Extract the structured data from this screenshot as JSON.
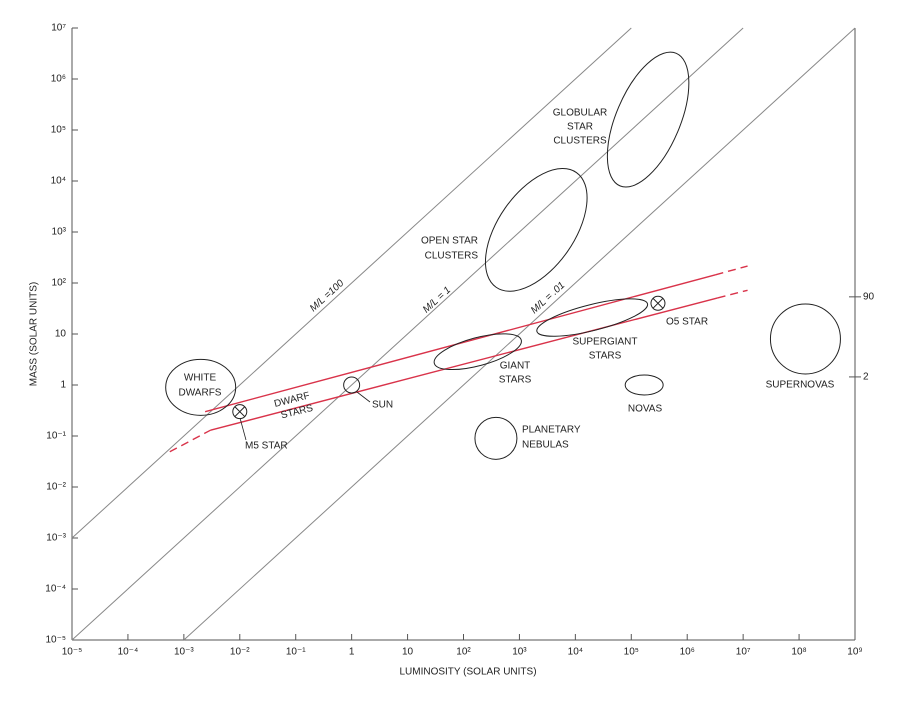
{
  "chart_data": {
    "type": "loglog-regions",
    "xlabel": "LUMINOSITY (SOLAR UNITS)",
    "ylabel": "MASS (SOLAR UNITS)",
    "xscale": "log",
    "yscale": "log",
    "xlim": [
      1e-05,
      1000000000
    ],
    "ylim": [
      1e-05,
      10000000
    ],
    "xticks": [
      {
        "value": 1e-05,
        "label": "10⁻⁵"
      },
      {
        "value": 0.0001,
        "label": "10⁻⁴"
      },
      {
        "value": 0.001,
        "label": "10⁻³"
      },
      {
        "value": 0.01,
        "label": "10⁻²"
      },
      {
        "value": 0.1,
        "label": "10⁻¹"
      },
      1,
      10,
      {
        "value": 100,
        "label": "10²"
      },
      {
        "value": 1000,
        "label": "10³"
      },
      {
        "value": 10000,
        "label": "10⁴"
      },
      {
        "value": 100000,
        "label": "10⁵"
      },
      {
        "value": 1000000,
        "label": "10⁶"
      },
      {
        "value": 10000000,
        "label": "10⁷"
      },
      {
        "value": 100000000,
        "label": "10⁸"
      },
      {
        "value": 1000000000,
        "label": "10⁹"
      }
    ],
    "yticks": [
      {
        "value": 1e-05,
        "label": "10⁻⁵"
      },
      {
        "value": 0.0001,
        "label": "10⁻⁴"
      },
      {
        "value": 0.001,
        "label": "10⁻³"
      },
      {
        "value": 0.01,
        "label": "10⁻²"
      },
      {
        "value": 0.1,
        "label": "10⁻¹"
      },
      1,
      10,
      {
        "value": 100,
        "label": "10²"
      },
      {
        "value": 1000,
        "label": "10³"
      },
      {
        "value": 10000,
        "label": "10⁴"
      },
      {
        "value": 100000,
        "label": "10⁵"
      },
      {
        "value": 1000000,
        "label": "10⁶"
      },
      {
        "value": 10000000,
        "label": "10⁷"
      }
    ],
    "y2scale": "log",
    "y2lim": [
      7.4e-06,
      32000000
    ],
    "y2ticks": [
      90,
      2
    ],
    "ratio_lines": [
      {
        "label": "M/L =100",
        "value": 100
      },
      {
        "label": "M/L = 1",
        "value": 1
      },
      {
        "label": "M/L = .01",
        "value": 0.01
      }
    ],
    "band_color": "#d9334a",
    "series": [
      {
        "line_style": "dashed",
        "x": [
          0.00056,
          0.003
        ],
        "values": [
          0.049,
          0.13
        ]
      },
      {
        "line_style": "solid",
        "x": [
          0.003,
          3500000
        ],
        "values": [
          0.13,
          51
        ]
      },
      {
        "line_style": "dashed",
        "x": [
          3500000,
          12000000
        ],
        "values": [
          51,
          72
        ]
      },
      {
        "line_style": "solid",
        "x": [
          0.0024,
          3200000
        ],
        "values": [
          0.3,
          145
        ]
      },
      {
        "line_style": "dashed",
        "x": [
          3200000,
          12000000
        ],
        "values": [
          145,
          215
        ]
      }
    ],
    "band_label": [
      "DWARF",
      "STARS"
    ],
    "regions": [
      {
        "label": [
          "WHITE",
          "DWARFS"
        ],
        "x": 0.002,
        "y": 0.9
      },
      {
        "label": [
          "OPEN STAR",
          "CLUSTERS"
        ],
        "x": 2000,
        "y": 1100
      },
      {
        "label": [
          "GLOBULAR",
          "STAR",
          "CLUSTERS"
        ],
        "x": 200000,
        "y": 160000
      },
      {
        "label": [
          "GIANT",
          "STARS"
        ],
        "x": 180,
        "y": 4.5
      },
      {
        "label": [
          "SUPERGIANT",
          "STARS"
        ],
        "x": 20000,
        "y": 21
      },
      {
        "label": [
          "PLANETARY",
          "NEBULAS"
        ],
        "x": 380,
        "y": 0.09
      },
      {
        "label": [
          "NOVAS"
        ],
        "x": 170000,
        "y": 1
      },
      {
        "label": [
          "SUPERNOVAS"
        ],
        "x": 130000000,
        "y": 8
      }
    ],
    "points": [
      {
        "label": "SUN",
        "x": 1,
        "y": 1,
        "marker": "circle"
      },
      {
        "label": "M5 STAR",
        "x": 0.01,
        "y": 0.3,
        "marker": "circle-x"
      },
      {
        "label": "O5 STAR",
        "x": 300000,
        "y": 40,
        "marker": "circle-x"
      }
    ]
  }
}
